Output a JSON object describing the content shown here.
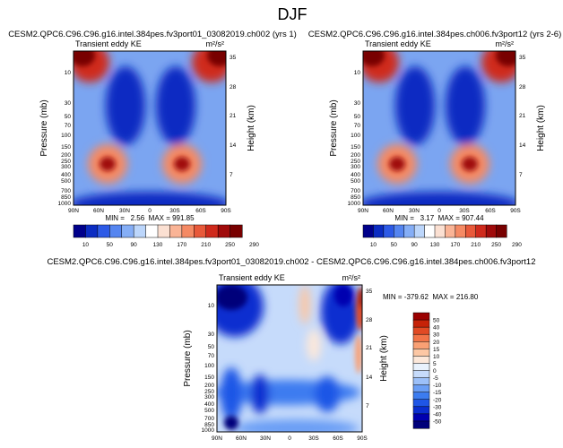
{
  "figure_title": "DJF",
  "chart_data": [
    {
      "type": "heatmap",
      "title": "CESM2.QPC6.C96.C96.g16.intel.384pes.fv3port01_03082019.ch002 (yrs 1)",
      "subtitle": "Transient eddy KE",
      "units": "m²/s²",
      "xlabel": "",
      "ylabel": "Pressure (mb)",
      "ylabel_right": "Height (km)",
      "x_ticks": [
        "90N",
        "60N",
        "30N",
        "0",
        "30S",
        "60S",
        "90S"
      ],
      "y_ticks": [
        "10",
        "30",
        "50",
        "70",
        "100",
        "150",
        "200",
        "250",
        "300",
        "400",
        "500",
        "700",
        "850",
        "1000"
      ],
      "height_ticks": [
        "35",
        "28",
        "21",
        "14",
        "7"
      ],
      "stats": "MIN =   2.56  MAX = 991.85",
      "contour_levels": [
        10,
        50,
        90,
        130,
        170,
        210,
        250,
        290
      ]
    },
    {
      "type": "heatmap",
      "title": "CESM2.QPC6.C96.C96.g16.intel.384pes.ch006.fv3port12 (yrs 2-6)",
      "subtitle": "Transient eddy KE",
      "units": "m²/s²",
      "xlabel": "",
      "ylabel": "Pressure (mb)",
      "ylabel_right": "Height (km)",
      "x_ticks": [
        "90N",
        "60N",
        "30N",
        "0",
        "30S",
        "60S",
        "90S"
      ],
      "y_ticks": [
        "10",
        "30",
        "50",
        "70",
        "100",
        "150",
        "200",
        "250",
        "300",
        "400",
        "500",
        "700",
        "850",
        "1000"
      ],
      "height_ticks": [
        "35",
        "28",
        "21",
        "14",
        "7"
      ],
      "stats": "MIN =   3.17  MAX = 907.44",
      "contour_levels": [
        10,
        50,
        90,
        130,
        170,
        210,
        250,
        290
      ]
    },
    {
      "type": "heatmap",
      "title": "CESM2.QPC6.C96.C96.g16.intel.384pes.fv3port01_03082019.ch002 - CESM2.QPC6.C96.C96.g16.intel.384pes.ch006.fv3port12",
      "subtitle": "Transient eddy KE",
      "units": "m²/s²",
      "xlabel": "",
      "ylabel": "Pressure (mb)",
      "ylabel_right": "Height (km)",
      "x_ticks": [
        "90N",
        "60N",
        "30N",
        "0",
        "30S",
        "60S",
        "90S"
      ],
      "y_ticks": [
        "10",
        "30",
        "50",
        "70",
        "100",
        "150",
        "200",
        "250",
        "300",
        "400",
        "500",
        "700",
        "850",
        "1000"
      ],
      "height_ticks": [
        "35",
        "28",
        "21",
        "14",
        "7"
      ],
      "stats": "MIN = -379.62  MAX = 216.80",
      "contour_levels": [
        -50,
        -40,
        -30,
        -20,
        -15,
        -10,
        -5,
        0,
        5,
        10,
        15,
        20,
        30,
        40,
        50
      ]
    }
  ],
  "colors": {
    "abs_scale": [
      "#00008b",
      "#0b2cc2",
      "#2d5ae6",
      "#5585f0",
      "#85aef6",
      "#bcd6fb",
      "#ffffff",
      "#fbe0d2",
      "#fab496",
      "#f58a64",
      "#e8593a",
      "#cf2a1c",
      "#a00a0a",
      "#780000"
    ],
    "diff_scale": [
      "#00007a",
      "#0000b0",
      "#0a2ed0",
      "#1f56e6",
      "#3c7cf0",
      "#6a9ef5",
      "#9cc0f9",
      "#c6dbfb",
      "#e9f2fd",
      "#fce8da",
      "#fcc7a4",
      "#f9a074",
      "#f27448",
      "#e14a24",
      "#c62208",
      "#9b0000"
    ]
  }
}
